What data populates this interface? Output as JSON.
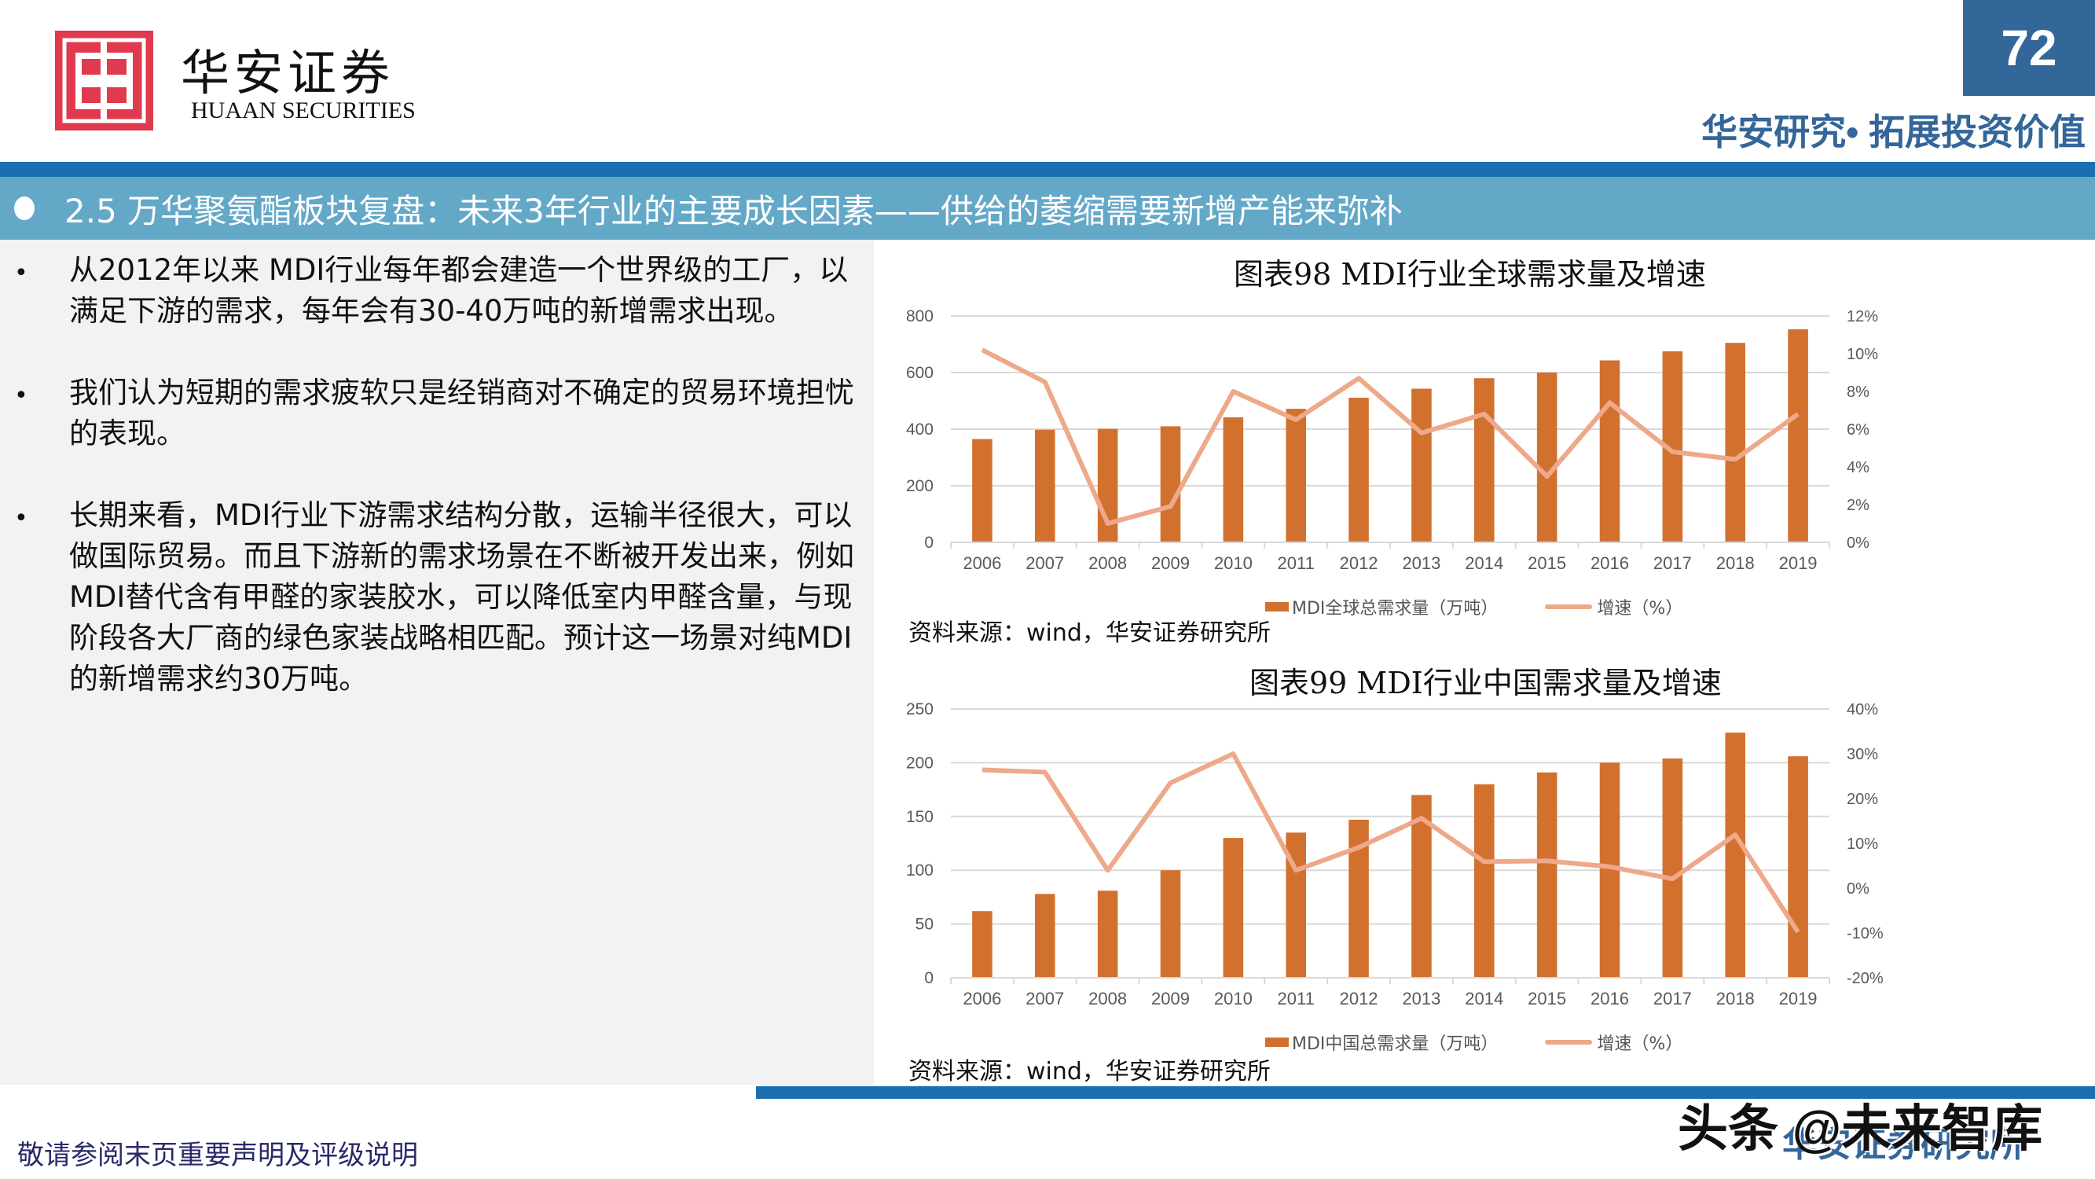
{
  "header": {
    "logo_cn": "华安证券",
    "logo_en": "HUAAN SECURITIES",
    "page_number": "72",
    "tagline": "华安研究• 拓展投资价值"
  },
  "section": {
    "title": "2.5 万华聚氨酯板块复盘：未来3年行业的主要成长因素——供给的萎缩需要新增产能来弥补"
  },
  "bullets": [
    {
      "mark": "•",
      "text": "从2012年以来 MDI行业每年都会建造一个世界级的工厂，以满足下游的需求，每年会有30-40万吨的新增需求出现。"
    },
    {
      "mark": "•",
      "text": "我们认为短期的需求疲软只是经销商对不确定的贸易环境担忧的表现。"
    },
    {
      "mark": "•",
      "text": "长期来看，MDI行业下游需求结构分散，运输半径很大，可以做国际贸易。而且下游新的需求场景在不断被开发出来，例如MDI替代含有甲醛的家装胶水，可以降低室内甲醛含量，与现阶段各大厂商的绿色家装战略相匹配。预计这一场景对纯MDI的新增需求约30万吨。"
    }
  ],
  "charts": [
    {
      "title": "图表98 MDI行业全球需求量及增速",
      "legend_bar": "MDI全球总需求量（万吨）",
      "legend_line": "增速（%）",
      "source": "资料来源：wind，华安证券研究所",
      "left_ticks": [
        "0",
        "200",
        "400",
        "600",
        "800"
      ],
      "right_ticks": [
        "0%",
        "2%",
        "4%",
        "6%",
        "8%",
        "10%",
        "12%"
      ]
    },
    {
      "title": "图表99 MDI行业中国需求量及增速",
      "legend_bar": "MDI中国总需求量（万吨）",
      "legend_line": "增速（%）",
      "source": "资料来源：wind，华安证券研究所",
      "left_ticks": [
        "0",
        "50",
        "100",
        "150",
        "200",
        "250"
      ],
      "right_ticks": [
        "-20%",
        "-10%",
        "0%",
        "10%",
        "20%",
        "30%",
        "40%"
      ]
    }
  ],
  "footer": {
    "disclaimer": "敬请参阅末页重要声明及评级说明",
    "org": "华安证券研究所",
    "watermark": "头条 @未来智库"
  },
  "colors": {
    "bar": "#d2702e",
    "line": "#eea88a",
    "brand_blue": "#336699",
    "bar_blue": "#1a6fb0",
    "section_blue": "#64a8c8",
    "logo_red": "#e03a4e"
  },
  "chart_data": [
    {
      "type": "bar",
      "title": "图表98 MDI行业全球需求量及增速",
      "categories": [
        "2006",
        "2007",
        "2008",
        "2009",
        "2010",
        "2011",
        "2012",
        "2013",
        "2014",
        "2015",
        "2016",
        "2017",
        "2018",
        "2019"
      ],
      "series": [
        {
          "name": "MDI全球总需求量（万吨）",
          "type": "bar",
          "axis": "left",
          "values": [
            365,
            398,
            401,
            410,
            442,
            472,
            511,
            543,
            580,
            600,
            643,
            675,
            705,
            753
          ]
        },
        {
          "name": "增速（%）",
          "type": "line",
          "axis": "right",
          "values": [
            10.2,
            8.5,
            1.0,
            1.9,
            8.0,
            6.5,
            8.7,
            5.8,
            6.8,
            3.5,
            7.4,
            4.8,
            4.4,
            6.8
          ]
        }
      ],
      "xlabel": "",
      "ylabel": "",
      "ylim": [
        0,
        800
      ],
      "y2lim": [
        0,
        12
      ],
      "grid": true,
      "legend_position": "bottom"
    },
    {
      "type": "bar",
      "title": "图表99 MDI行业中国需求量及增速",
      "categories": [
        "2006",
        "2007",
        "2008",
        "2009",
        "2010",
        "2011",
        "2012",
        "2013",
        "2014",
        "2015",
        "2016",
        "2017",
        "2018",
        "2019"
      ],
      "series": [
        {
          "name": "MDI中国总需求量（万吨）",
          "type": "bar",
          "axis": "left",
          "values": [
            62,
            78,
            81,
            100,
            130,
            135,
            147,
            170,
            180,
            191,
            200,
            204,
            228,
            206
          ]
        },
        {
          "name": "增速（%）",
          "type": "line",
          "axis": "right",
          "values": [
            26.4,
            25.9,
            4.0,
            23.5,
            30.0,
            4.0,
            9.1,
            15.6,
            5.9,
            6.1,
            4.8,
            2.1,
            11.9,
            -9.8
          ]
        }
      ],
      "xlabel": "",
      "ylabel": "",
      "ylim": [
        0,
        250
      ],
      "y2lim": [
        -20,
        40
      ],
      "grid": true,
      "legend_position": "bottom"
    }
  ]
}
